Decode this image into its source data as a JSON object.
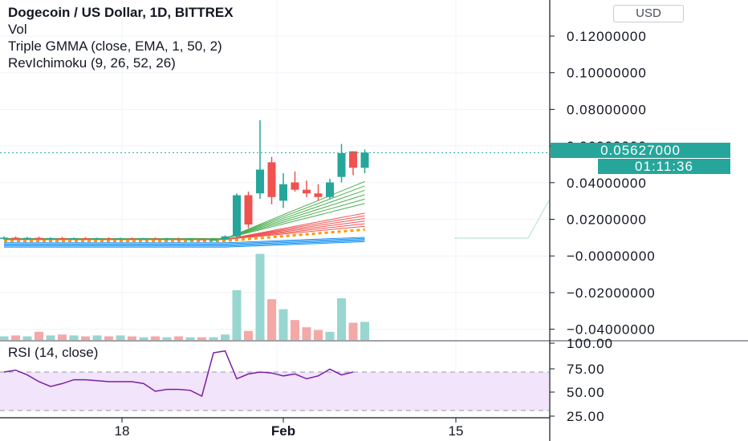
{
  "header": {
    "title": "Dogecoin / US Dollar, 1D, BITTREX",
    "indicators": [
      "Vol",
      "Triple GMMA (close, EMA, 1, 50, 2)",
      "RevIchimoku (9, 26, 52, 26)"
    ],
    "currency_button": "USD"
  },
  "last_price": {
    "label": "0.05627000",
    "countdown": "01:11:36"
  },
  "rsi": {
    "label": "RSI (14, close)"
  },
  "colors": {
    "up": "#26a69a",
    "down": "#ef5350",
    "vol_up": "#98d6d0",
    "vol_down": "#f4a9a7",
    "rsi_line": "#7b1fa2",
    "rsi_band": "#f1e4fb",
    "gmma_short": "#4caf50",
    "gmma_long": "#ef5350",
    "gmma_base": "#2196f3",
    "dots": "#ff9800"
  },
  "chart_data": [
    {
      "type": "candlestick",
      "title": "Dogecoin / US Dollar, 1D, BITTREX",
      "y_ticks": [
        "0.12000000",
        "0.10000000",
        "0.08000000",
        "0.06000000",
        "0.04000000",
        "0.02000000",
        "−0.00000000",
        "−0.02000000",
        "−0.04000000"
      ],
      "x_ticks": [
        "18",
        "Feb",
        "15"
      ],
      "ylim": [
        -0.045,
        0.125
      ],
      "last_price": 0.05627,
      "candles": [
        {
          "o": 0.0095,
          "h": 0.0105,
          "l": 0.0088,
          "c": 0.0098
        },
        {
          "o": 0.0098,
          "h": 0.0104,
          "l": 0.009,
          "c": 0.0094
        },
        {
          "o": 0.0094,
          "h": 0.0102,
          "l": 0.0088,
          "c": 0.0097
        },
        {
          "o": 0.0097,
          "h": 0.0103,
          "l": 0.0091,
          "c": 0.0093
        },
        {
          "o": 0.0093,
          "h": 0.01,
          "l": 0.0087,
          "c": 0.0096
        },
        {
          "o": 0.0096,
          "h": 0.0102,
          "l": 0.009,
          "c": 0.0092
        },
        {
          "o": 0.0092,
          "h": 0.0099,
          "l": 0.0086,
          "c": 0.0095
        },
        {
          "o": 0.0095,
          "h": 0.0101,
          "l": 0.0089,
          "c": 0.0091
        },
        {
          "o": 0.0091,
          "h": 0.0098,
          "l": 0.0086,
          "c": 0.0094
        },
        {
          "o": 0.0094,
          "h": 0.01,
          "l": 0.0088,
          "c": 0.0092
        },
        {
          "o": 0.0092,
          "h": 0.0098,
          "l": 0.0086,
          "c": 0.0093
        },
        {
          "o": 0.0093,
          "h": 0.0099,
          "l": 0.0087,
          "c": 0.009
        },
        {
          "o": 0.009,
          "h": 0.0097,
          "l": 0.0085,
          "c": 0.0093
        },
        {
          "o": 0.0093,
          "h": 0.0099,
          "l": 0.0087,
          "c": 0.0091
        },
        {
          "o": 0.0091,
          "h": 0.0097,
          "l": 0.0085,
          "c": 0.0092
        },
        {
          "o": 0.0092,
          "h": 0.0098,
          "l": 0.0086,
          "c": 0.0089
        },
        {
          "o": 0.0089,
          "h": 0.0094,
          "l": 0.0084,
          "c": 0.009
        },
        {
          "o": 0.009,
          "h": 0.0095,
          "l": 0.0085,
          "c": 0.0087
        },
        {
          "o": 0.0087,
          "h": 0.0093,
          "l": 0.0083,
          "c": 0.0088
        },
        {
          "o": 0.0088,
          "h": 0.011,
          "l": 0.0084,
          "c": 0.0105
        },
        {
          "o": 0.0105,
          "h": 0.034,
          "l": 0.01,
          "c": 0.033
        },
        {
          "o": 0.033,
          "h": 0.035,
          "l": 0.015,
          "c": 0.017
        },
        {
          "o": 0.034,
          "h": 0.074,
          "l": 0.031,
          "c": 0.047
        },
        {
          "o": 0.051,
          "h": 0.054,
          "l": 0.028,
          "c": 0.032
        },
        {
          "o": 0.03,
          "h": 0.045,
          "l": 0.026,
          "c": 0.039
        },
        {
          "o": 0.04,
          "h": 0.046,
          "l": 0.035,
          "c": 0.036
        },
        {
          "o": 0.036,
          "h": 0.041,
          "l": 0.032,
          "c": 0.034
        },
        {
          "o": 0.034,
          "h": 0.039,
          "l": 0.03,
          "c": 0.032
        },
        {
          "o": 0.032,
          "h": 0.042,
          "l": 0.031,
          "c": 0.04
        },
        {
          "o": 0.043,
          "h": 0.061,
          "l": 0.04,
          "c": 0.056
        },
        {
          "o": 0.057,
          "h": 0.057,
          "l": 0.044,
          "c": 0.048
        },
        {
          "o": 0.048,
          "h": 0.058,
          "l": 0.045,
          "c": 0.0563
        }
      ],
      "volume": [
        0.4,
        0.5,
        0.4,
        0.9,
        0.5,
        0.6,
        0.5,
        0.4,
        0.5,
        0.4,
        0.5,
        0.4,
        0.3,
        0.4,
        0.3,
        0.4,
        0.3,
        0.3,
        0.3,
        0.6,
        5.5,
        1.0,
        9.5,
        4.5,
        3.4,
        2.2,
        1.4,
        1.1,
        0.9,
        4.6,
        1.9,
        2.0
      ],
      "volume_up": [
        true,
        false,
        true,
        false,
        true,
        false,
        true,
        false,
        true,
        false,
        true,
        false,
        true,
        false,
        true,
        false,
        true,
        false,
        true,
        true,
        true,
        false,
        true,
        false,
        true,
        false,
        false,
        false,
        true,
        true,
        false,
        true
      ]
    },
    {
      "type": "line",
      "title": "RSI (14, close)",
      "y_ticks": [
        "100.00",
        "75.00",
        "50.00",
        "25.00"
      ],
      "ylim": [
        20,
        100
      ],
      "band": [
        30,
        70
      ],
      "values": [
        70,
        72,
        67,
        60,
        55,
        58,
        62,
        62,
        61,
        60,
        60,
        60,
        58,
        50,
        52,
        52,
        51,
        45,
        90,
        92,
        63,
        68,
        70,
        69,
        66,
        68,
        63,
        66,
        73,
        67,
        70
      ]
    }
  ]
}
